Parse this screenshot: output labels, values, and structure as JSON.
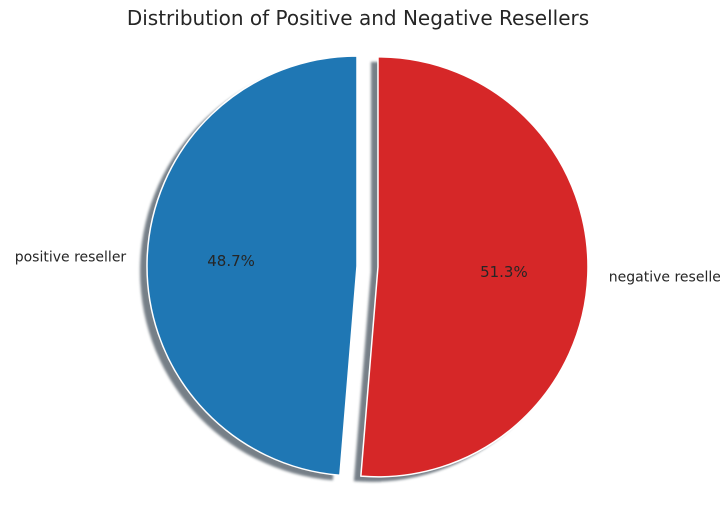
{
  "chart_data": {
    "type": "pie",
    "title": "Distribution of Positive and Negative Resellers",
    "slices": [
      {
        "label": "positive reseller",
        "value": 48.7,
        "percent_label": "48.7%",
        "color": "#1f77b4"
      },
      {
        "label": "negative reseller",
        "value": 51.3,
        "percent_label": "51.3%",
        "color": "#d62728"
      }
    ],
    "start_angle_deg": 90,
    "direction": "counterclockwise",
    "explode": [
      0.0,
      0.1
    ],
    "shadow": true
  }
}
